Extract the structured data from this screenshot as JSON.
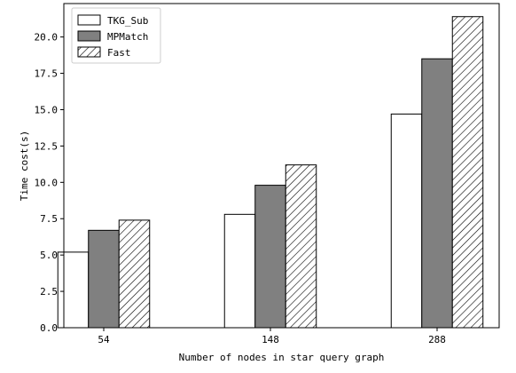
{
  "chart_data": {
    "type": "bar",
    "categories": [
      "54",
      "148",
      "288"
    ],
    "series": [
      {
        "name": "TKG_Sub",
        "values": [
          5.2,
          7.8,
          14.7
        ],
        "color": "#ffffff",
        "fill_style": "solid"
      },
      {
        "name": "MPMatch",
        "values": [
          6.7,
          9.8,
          18.5
        ],
        "color": "#808080",
        "fill_style": "solid"
      },
      {
        "name": "Fast",
        "values": [
          7.4,
          11.2,
          21.4
        ],
        "color": "#ffffff",
        "fill_style": "hatch"
      }
    ],
    "xlabel": "Number of nodes in star query graph",
    "ylabel": "Time cost(s)",
    "ylim": [
      0,
      22.3
    ],
    "yticks": [
      "0.0",
      "2.5",
      "5.0",
      "7.5",
      "10.0",
      "12.5",
      "15.0",
      "17.5",
      "20.0"
    ],
    "ytick_values": [
      0,
      2.5,
      5,
      7.5,
      10,
      12.5,
      15,
      17.5,
      20
    ],
    "legend_position": "top-left",
    "grid": false
  }
}
